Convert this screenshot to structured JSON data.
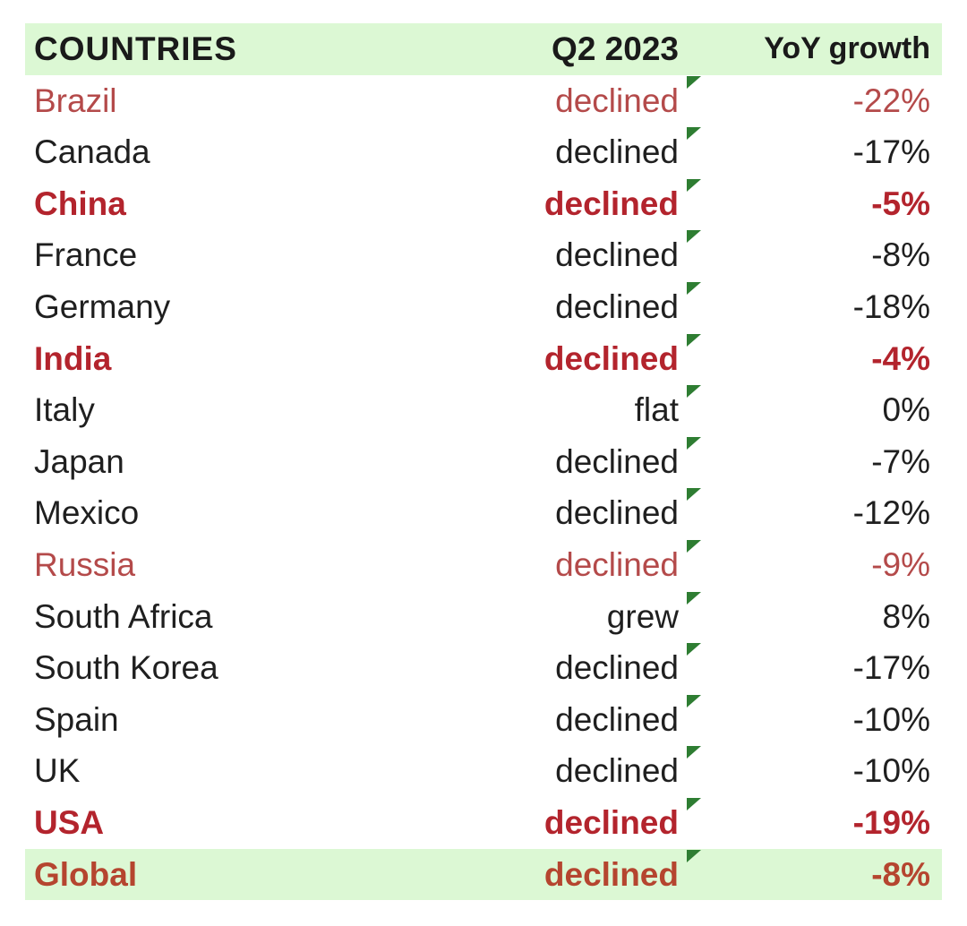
{
  "chart_data": {
    "type": "table",
    "columns": [
      "COUNTRIES",
      "Q2 2023",
      "YoY growth"
    ],
    "rows": [
      {
        "country": "Brazil",
        "status": "declined",
        "growth": "-22%",
        "growth_value": -22,
        "style": "red-light"
      },
      {
        "country": "Canada",
        "status": "declined",
        "growth": "-17%",
        "growth_value": -17,
        "style": "normal"
      },
      {
        "country": "China",
        "status": "declined",
        "growth": "-5%",
        "growth_value": -5,
        "style": "red-bold"
      },
      {
        "country": "France",
        "status": "declined",
        "growth": "-8%",
        "growth_value": -8,
        "style": "normal"
      },
      {
        "country": "Germany",
        "status": "declined",
        "growth": "-18%",
        "growth_value": -18,
        "style": "normal"
      },
      {
        "country": "India",
        "status": "declined",
        "growth": "-4%",
        "growth_value": -4,
        "style": "red-bold"
      },
      {
        "country": "Italy",
        "status": "flat",
        "growth": "0%",
        "growth_value": 0,
        "style": "normal"
      },
      {
        "country": "Japan",
        "status": "declined",
        "growth": "-7%",
        "growth_value": -7,
        "style": "normal"
      },
      {
        "country": "Mexico",
        "status": "declined",
        "growth": "-12%",
        "growth_value": -12,
        "style": "normal"
      },
      {
        "country": "Russia",
        "status": "declined",
        "growth": "-9%",
        "growth_value": -9,
        "style": "red-light"
      },
      {
        "country": "South Africa",
        "status": "grew",
        "growth": "8%",
        "growth_value": 8,
        "style": "normal"
      },
      {
        "country": "South Korea",
        "status": "declined",
        "growth": "-17%",
        "growth_value": -17,
        "style": "normal"
      },
      {
        "country": "Spain",
        "status": "declined",
        "growth": "-10%",
        "growth_value": -10,
        "style": "normal"
      },
      {
        "country": "UK",
        "status": "declined",
        "growth": "-10%",
        "growth_value": -10,
        "style": "normal"
      },
      {
        "country": "USA",
        "status": "declined",
        "growth": "-19%",
        "growth_value": -19,
        "style": "red-bold"
      }
    ],
    "total": {
      "country": "Global",
      "status": "declined",
      "growth": "-8%",
      "growth_value": -8
    }
  },
  "colors": {
    "header_background": "#dcf8d4",
    "total_background": "#dcf8d4",
    "highlight_red": "#b3242d",
    "light_red": "#b44a4a",
    "normal_text": "#1f1f1f",
    "total_text": "#b5452f",
    "cell_comment_marker": "#2e7d32"
  }
}
